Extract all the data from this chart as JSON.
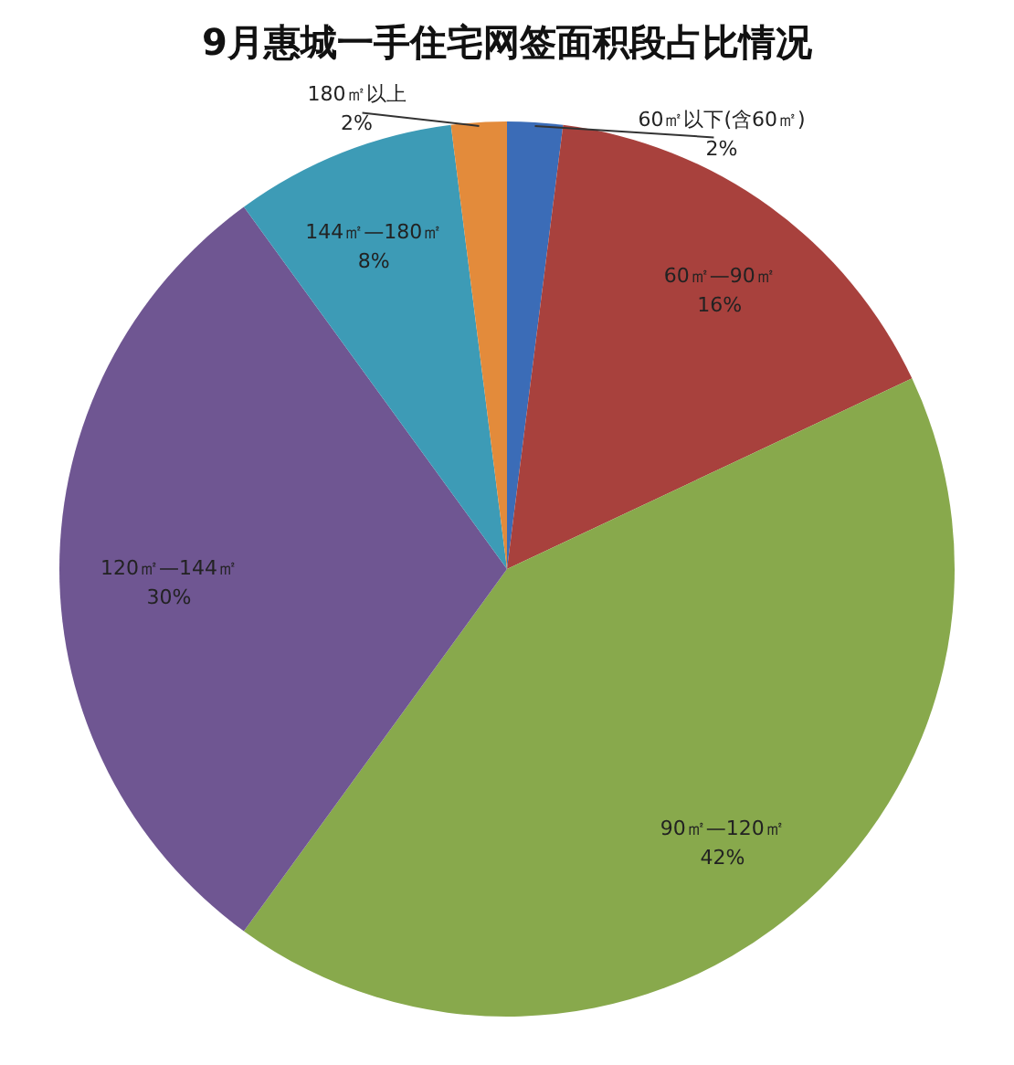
{
  "chart_data": {
    "type": "pie",
    "title": "9月惠城一手住宅网签面积段占比情况",
    "categories": [
      "60㎡以下(含60㎡)",
      "60㎡—90㎡",
      "90㎡—120㎡",
      "120㎡—144㎡",
      "144㎡—180㎡",
      "180㎡以上"
    ],
    "values": [
      2,
      16,
      42,
      30,
      8,
      2
    ],
    "colors": [
      "#3b6cb7",
      "#a8413d",
      "#88a94c",
      "#6f5692",
      "#3d9bb6",
      "#e38b3b"
    ],
    "value_labels": [
      "2%",
      "16%",
      "42%",
      "30%",
      "8%",
      "2%"
    ],
    "legend": false
  }
}
